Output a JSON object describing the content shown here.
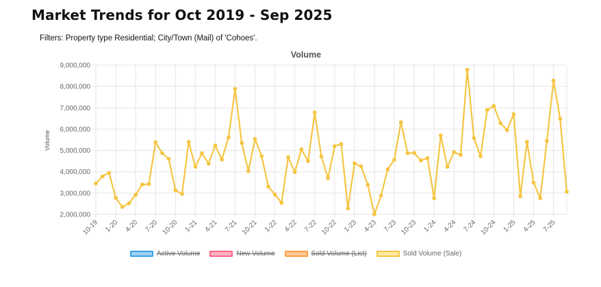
{
  "header": {
    "title": "Market Trends for Oct 2019 - Sep 2025",
    "filters": "Filters: Property type Residential; City/Town (Mail) of 'Cohoes'."
  },
  "chart_data": {
    "type": "line",
    "title": "Volume",
    "xlabel": "",
    "ylabel": "Volume",
    "ylim": [
      2000000,
      9000000
    ],
    "yticks": [
      2000000,
      3000000,
      4000000,
      5000000,
      6000000,
      7000000,
      8000000,
      9000000
    ],
    "ytick_labels": [
      "2,000,000",
      "3,000,000",
      "4,000,000",
      "5,000,000",
      "6,000,000",
      "7,000,000",
      "8,000,000",
      "9,000,000"
    ],
    "grid": true,
    "x_tick_labels": [
      {
        "index": 0,
        "label": "10-19"
      },
      {
        "index": 3,
        "label": "1-20"
      },
      {
        "index": 6,
        "label": "4-20"
      },
      {
        "index": 9,
        "label": "7-20"
      },
      {
        "index": 12,
        "label": "10-20"
      },
      {
        "index": 15,
        "label": "1-21"
      },
      {
        "index": 18,
        "label": "4-21"
      },
      {
        "index": 21,
        "label": "7-21"
      },
      {
        "index": 24,
        "label": "10-21"
      },
      {
        "index": 27,
        "label": "1-22"
      },
      {
        "index": 30,
        "label": "4-22"
      },
      {
        "index": 33,
        "label": "7-22"
      },
      {
        "index": 36,
        "label": "10-22"
      },
      {
        "index": 39,
        "label": "1-23"
      },
      {
        "index": 42,
        "label": "4-23"
      },
      {
        "index": 45,
        "label": "7-23"
      },
      {
        "index": 48,
        "label": "10-23"
      },
      {
        "index": 51,
        "label": "1-24"
      },
      {
        "index": 54,
        "label": "4-24"
      },
      {
        "index": 57,
        "label": "7-24"
      },
      {
        "index": 60,
        "label": "10-24"
      },
      {
        "index": 63,
        "label": "1-25"
      },
      {
        "index": 66,
        "label": "4-25"
      },
      {
        "index": 69,
        "label": "7-25"
      }
    ],
    "series": [
      {
        "name": "Sold Volume (Sale)",
        "color": "#f5c542",
        "values": [
          3450000,
          3780000,
          3950000,
          2780000,
          2350000,
          2520000,
          2920000,
          3400000,
          3420000,
          5380000,
          4870000,
          4600000,
          3130000,
          2960000,
          5400000,
          4230000,
          4870000,
          4380000,
          5230000,
          4570000,
          5600000,
          7880000,
          5350000,
          4030000,
          5530000,
          4730000,
          3310000,
          2930000,
          2540000,
          4680000,
          3980000,
          5050000,
          4500000,
          6780000,
          4710000,
          3700000,
          5200000,
          5300000,
          2280000,
          4390000,
          4250000,
          3390000,
          2010000,
          2880000,
          4110000,
          4560000,
          6320000,
          4870000,
          4880000,
          4530000,
          4640000,
          2760000,
          5700000,
          4230000,
          4920000,
          4790000,
          8780000,
          5580000,
          4730000,
          6890000,
          7080000,
          6280000,
          5950000,
          6700000,
          2850000,
          5400000,
          3490000,
          2760000,
          5450000,
          8270000,
          6480000,
          3060000
        ]
      }
    ],
    "legend": [
      {
        "label": "Active Volume",
        "fill": "#9fd0f3",
        "border": "#36a2eb",
        "hidden": true
      },
      {
        "label": "New Volume",
        "fill": "#ffb3c2",
        "border": "#ff6384",
        "hidden": true
      },
      {
        "label": "Sold Volume (List)",
        "fill": "#ffc999",
        "border": "#ff9f40",
        "hidden": true
      },
      {
        "label": "Sold Volume (Sale)",
        "fill": "#ffe9a3",
        "border": "#f5c542",
        "hidden": false
      }
    ]
  }
}
